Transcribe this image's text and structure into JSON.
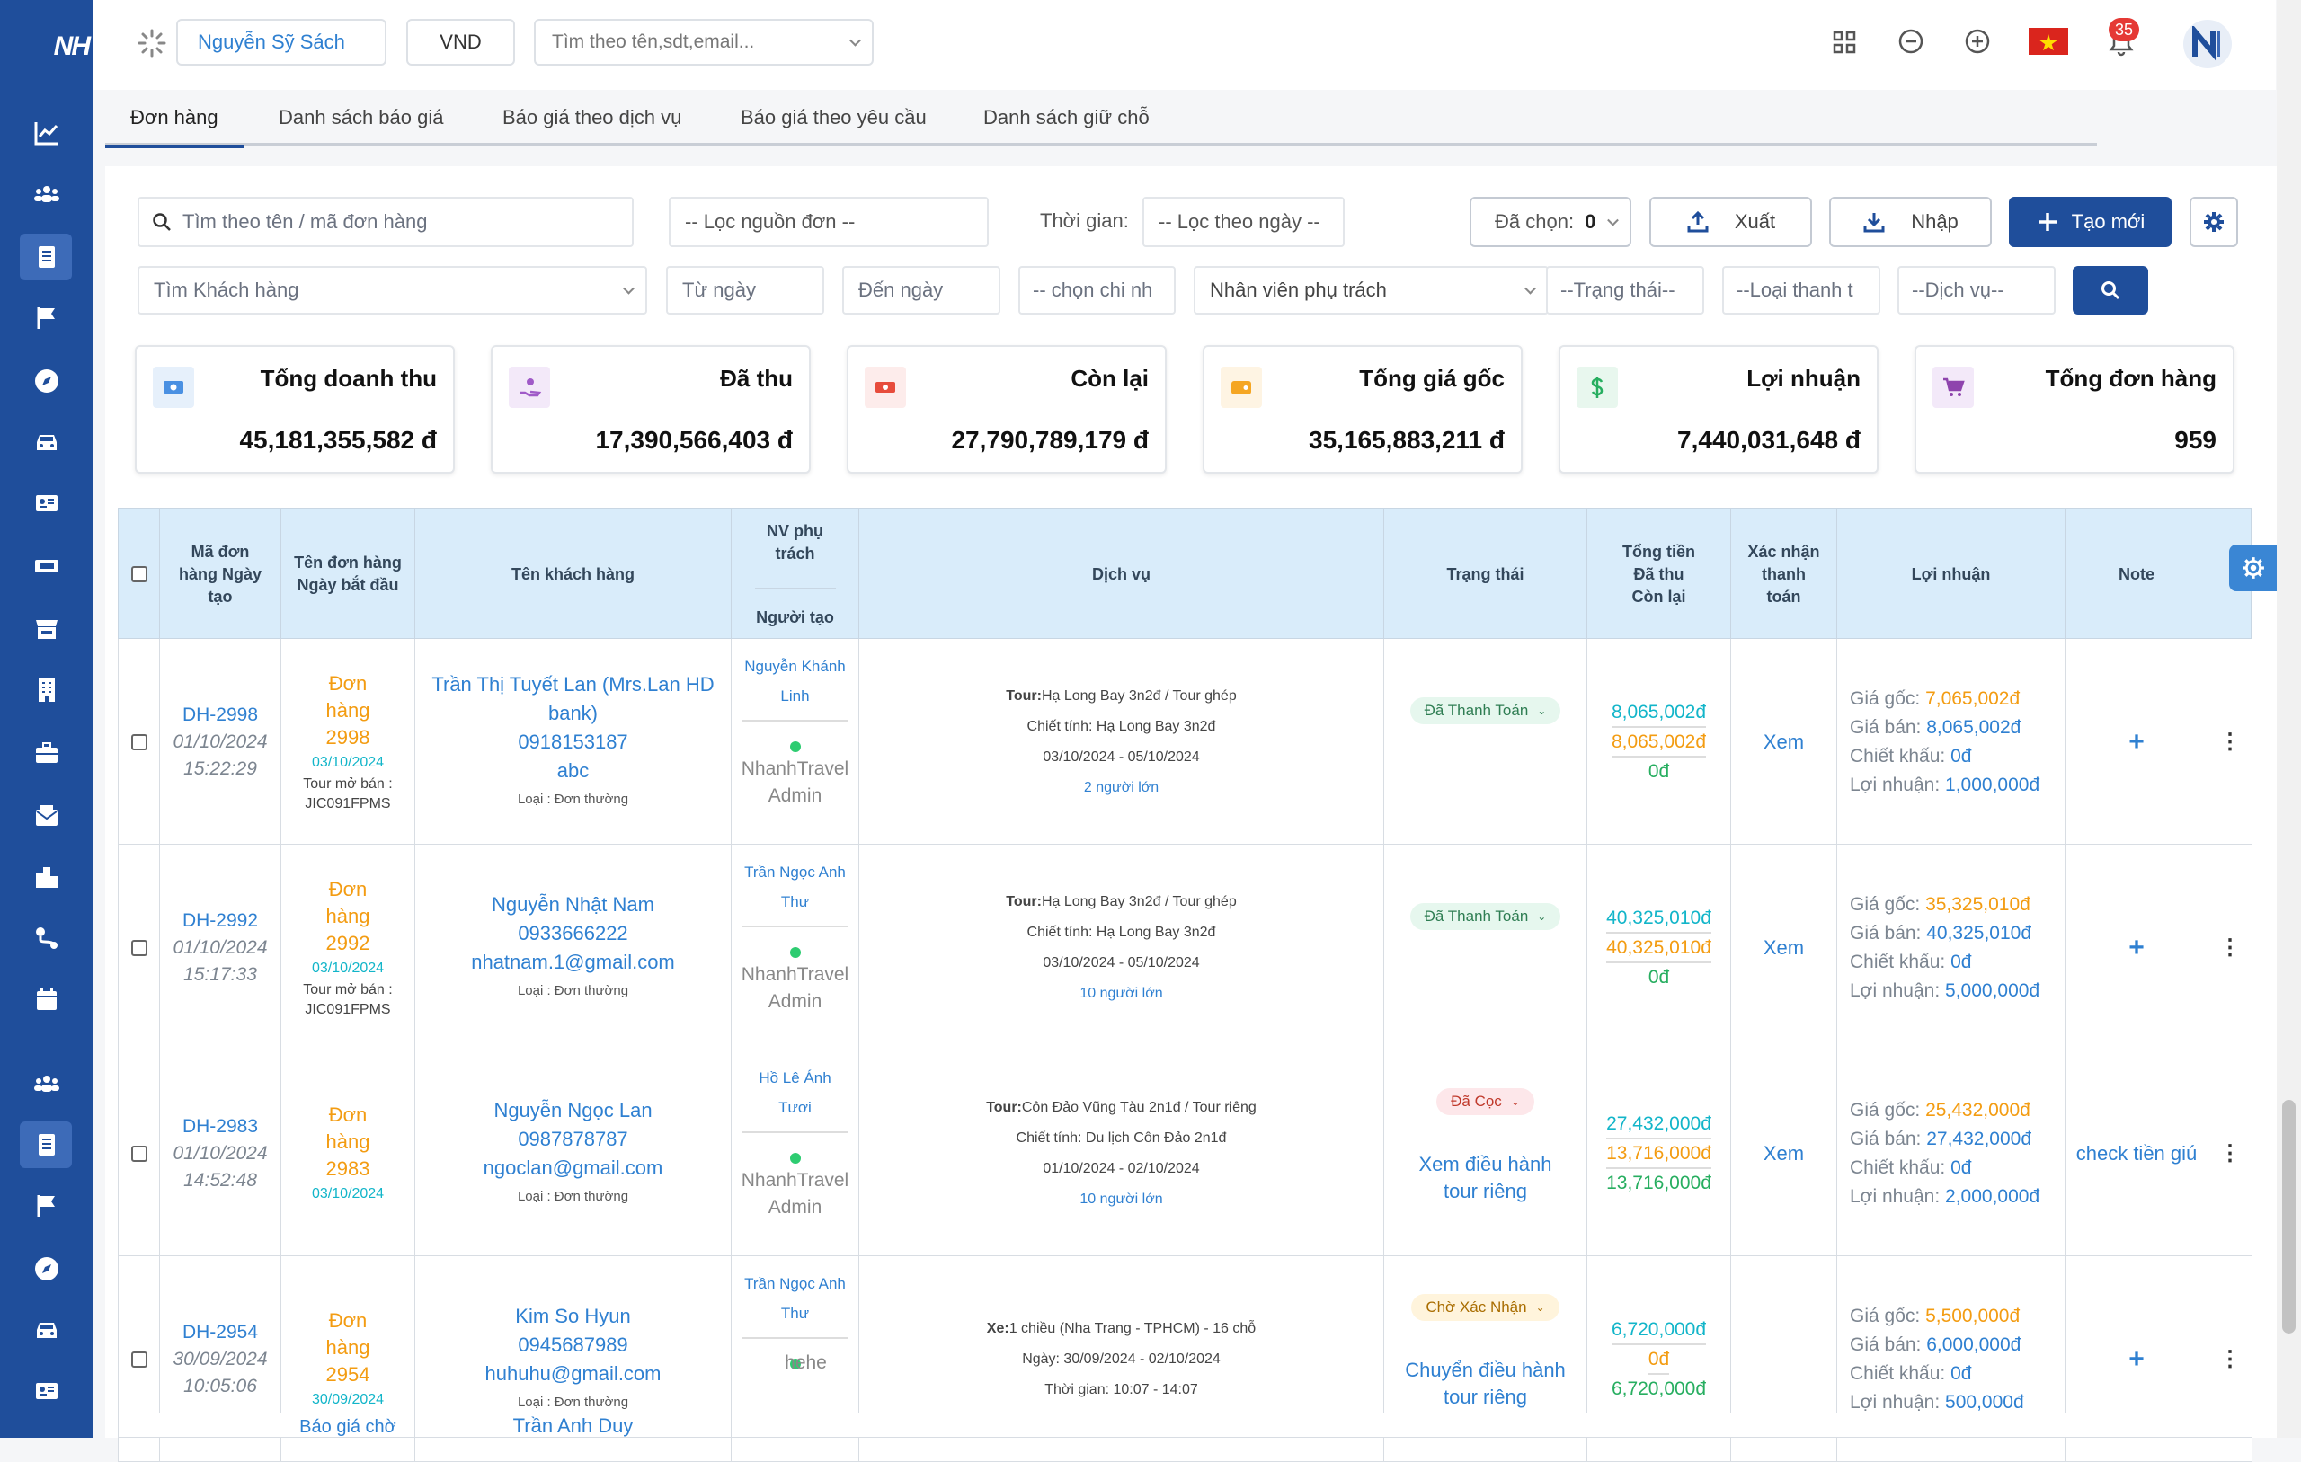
{
  "brand": {
    "logo": "NH"
  },
  "topbar": {
    "user": "Nguyễn Sỹ Sách",
    "currency": "VND",
    "search_placeholder": "Tìm theo tên,sdt,email...",
    "notification_count": "35"
  },
  "tabs": [
    "Đơn hàng",
    "Danh sách báo giá",
    "Báo giá theo dịch vụ",
    "Báo giá theo yêu cầu",
    "Danh sách giữ chỗ"
  ],
  "filters": {
    "order_search": "Tìm theo tên / mã đơn hàng",
    "source": "-- Lọc nguồn đơn --",
    "time_label": "Thời gian:",
    "time_filter": "-- Lọc theo ngày --",
    "selected_label": "Đã chọn:",
    "selected_count": "0",
    "export": "Xuất",
    "import": "Nhập",
    "create": "Tạo mới",
    "customer": "Tìm Khách hàng",
    "from_date": "Từ ngày",
    "to_date": "Đến ngày",
    "branch": "-- chọn chi nh",
    "staff": "Nhân viên phụ trách",
    "status": "--Trạng thái--",
    "payment_type": "--Loại thanh t",
    "service": "--Dịch vụ--"
  },
  "stats": [
    {
      "label": "Tổng doanh thu",
      "value": "45,181,355,582 đ",
      "icon": "money-icon",
      "color": "#4a90e2",
      "bg": "#e6f0fb"
    },
    {
      "label": "Đã thu",
      "value": "17,390,566,403 đ",
      "icon": "hand-money-icon",
      "color": "#a05ac8",
      "bg": "#f3e9f9"
    },
    {
      "label": "Còn lại",
      "value": "27,790,789,179 đ",
      "icon": "cash-icon",
      "color": "#e74c3c",
      "bg": "#fdeceb"
    },
    {
      "label": "Tổng giá gốc",
      "value": "35,165,883,211 đ",
      "icon": "wallet-icon",
      "color": "#f5a623",
      "bg": "#fef4e3"
    },
    {
      "label": "Lợi nhuận",
      "value": "7,440,031,648 đ",
      "icon": "dollar-icon",
      "color": "#27ae60",
      "bg": "#e8f7ee"
    },
    {
      "label": "Tổng đơn hàng",
      "value": "959",
      "icon": "cart-icon",
      "color": "#8e44ad",
      "bg": "#f3e9f9"
    }
  ],
  "table": {
    "headers": {
      "code": "Mã đơn hàng Ngày tạo",
      "name": "Tên đơn hàng Ngày bắt đầu",
      "customer": "Tên khách hàng",
      "staff_top": "NV phụ trách",
      "staff_bottom": "Người tạo",
      "service": "Dịch vụ",
      "status": "Trạng thái",
      "total": "Tổng tiền Đã thu Còn lại",
      "confirm": "Xác nhận thanh toán",
      "profit": "Lợi nhuận",
      "note": "Note"
    },
    "rows": [
      {
        "code": "DH-2998",
        "created": "01/10/2024",
        "time": "15:22:29",
        "name": "Đơn hàng 2998",
        "start": "03/10/2024",
        "extra1": "Tour mở bán :",
        "extra2": "JIC091FPMS",
        "customer": "Trần Thị Tuyết Lan (Mrs.Lan HD bank)",
        "phone": "0918153187",
        "email": "abc",
        "ctype": "Loại : Đơn thường",
        "staff": "Nguyễn Khánh Linh",
        "creator": "NhanhTravel Admin",
        "svc1_label": "Tour:",
        "svc1": "Hạ Long Bay 3n2đ / Tour ghép",
        "svc2": "Chiết tính: Hạ Long Bay 3n2đ",
        "svc3": "03/10/2024 - 05/10/2024",
        "svc4": "2 người lớn",
        "status": "Đã Thanh Toán",
        "status_type": "paid",
        "status_link": "",
        "total": "8,065,002đ",
        "paid": "8,065,002đ",
        "remain": "0đ",
        "confirm": "Xem",
        "cost": "7,065,002đ",
        "price": "8,065,002đ",
        "discount": "0đ",
        "profit": "1,000,000đ",
        "note": "",
        "note_plus": "+"
      },
      {
        "code": "DH-2992",
        "created": "01/10/2024",
        "time": "15:17:33",
        "name": "Đơn hàng 2992",
        "start": "03/10/2024",
        "extra1": "Tour mở bán :",
        "extra2": "JIC091FPMS",
        "customer": "Nguyễn Nhật Nam",
        "phone": "0933666222",
        "email": "nhatnam.1@gmail.com",
        "ctype": "Loại : Đơn thường",
        "staff": "Trần Ngọc Anh Thư",
        "creator": "NhanhTravel Admin",
        "svc1_label": "Tour:",
        "svc1": "Hạ Long Bay 3n2đ / Tour ghép",
        "svc2": "Chiết tính: Hạ Long Bay 3n2đ",
        "svc3": "03/10/2024 - 05/10/2024",
        "svc4": "10 người lớn",
        "status": "Đã Thanh Toán",
        "status_type": "paid",
        "status_link": "",
        "total": "40,325,010đ",
        "paid": "40,325,010đ",
        "remain": "0đ",
        "confirm": "Xem",
        "cost": "35,325,010đ",
        "price": "40,325,010đ",
        "discount": "0đ",
        "profit": "5,000,000đ",
        "note": "",
        "note_plus": "+"
      },
      {
        "code": "DH-2983",
        "created": "01/10/2024",
        "time": "14:52:48",
        "name": "Đơn hàng 2983",
        "start": "03/10/2024",
        "extra1": "",
        "extra2": "",
        "customer": "Nguyễn Ngọc Lan",
        "phone": "0987878787",
        "email": "ngoclan@gmail.com",
        "ctype": "Loại : Đơn thường",
        "staff": "Hồ Lê Ánh Tươi",
        "creator": "NhanhTravel Admin",
        "svc1_label": "Tour:",
        "svc1": "Côn Đảo Vũng Tàu 2n1đ / Tour riêng",
        "svc2": "Chiết tính: Du lịch Côn Đảo 2n1đ",
        "svc3": "01/10/2024 - 02/10/2024",
        "svc4": "10 người lớn",
        "status": "Đã Cọc",
        "status_type": "deposit",
        "status_link": "Xem điều hành tour riêng",
        "total": "27,432,000đ",
        "paid": "13,716,000đ",
        "remain": "13,716,000đ",
        "confirm": "Xem",
        "cost": "25,432,000đ",
        "price": "27,432,000đ",
        "discount": "0đ",
        "profit": "2,000,000đ",
        "note": "check tiền giú",
        "note_plus": ""
      },
      {
        "code": "DH-2954",
        "created": "30/09/2024",
        "time": "10:05:06",
        "name": "Đơn hàng 2954",
        "start": "30/09/2024",
        "extra1": "",
        "extra2": "",
        "customer": "Kim So Hyun",
        "phone": "0945687989",
        "email": "huhuhu@gmail.com",
        "ctype": "Loại : Đơn thường",
        "staff": "Trần Ngọc Anh Thư",
        "creator": "hehe",
        "svc1_label": "Xe:",
        "svc1": "1 chiều (Nha Trang - TPHCM) - 16 chỗ",
        "svc2": "Ngày: 30/09/2024 - 02/10/2024",
        "svc3": "Thời gian: 10:07 - 14:07",
        "svc4": "",
        "status": "Chờ Xác Nhận",
        "status_type": "pending",
        "status_link": "Chuyển điều hành tour riêng",
        "total": "6,720,000đ",
        "paid": "0đ",
        "remain": "6,720,000đ",
        "confirm": "",
        "cost": "5,500,000đ",
        "price": "6,000,000đ",
        "discount": "0đ",
        "profit": "500,000đ",
        "note": "",
        "note_plus": "+"
      }
    ],
    "next_row": {
      "name": "Báo giá chờ",
      "customer": "Trần Anh Duy"
    },
    "labels": {
      "cost": "Giá gốc:",
      "price": "Giá bán:",
      "discount": "Chiết khấu:",
      "profit": "Lợi nhuận:"
    }
  }
}
